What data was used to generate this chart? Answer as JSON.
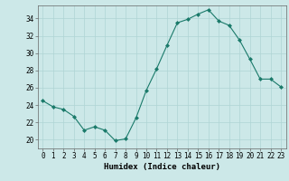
{
  "x": [
    0,
    1,
    2,
    3,
    4,
    5,
    6,
    7,
    8,
    9,
    10,
    11,
    12,
    13,
    14,
    15,
    16,
    17,
    18,
    19,
    20,
    21,
    22,
    23
  ],
  "y": [
    24.5,
    23.8,
    23.5,
    22.7,
    21.1,
    21.5,
    21.1,
    19.9,
    20.1,
    22.5,
    25.7,
    28.2,
    30.9,
    33.5,
    33.9,
    34.5,
    35.0,
    33.7,
    33.2,
    31.5,
    29.3,
    27.0,
    27.0,
    26.1
  ],
  "line_color": "#1a7a6a",
  "marker": "D",
  "marker_size": 2,
  "bg_color": "#cce8e8",
  "grid_color": "#afd4d4",
  "xlabel": "Humidex (Indice chaleur)",
  "xlim": [
    -0.5,
    23.5
  ],
  "ylim": [
    19.0,
    35.5
  ],
  "yticks": [
    20,
    22,
    24,
    26,
    28,
    30,
    32,
    34
  ],
  "xticks": [
    0,
    1,
    2,
    3,
    4,
    5,
    6,
    7,
    8,
    9,
    10,
    11,
    12,
    13,
    14,
    15,
    16,
    17,
    18,
    19,
    20,
    21,
    22,
    23
  ],
  "tick_fontsize": 5.5,
  "xlabel_fontsize": 6.5
}
